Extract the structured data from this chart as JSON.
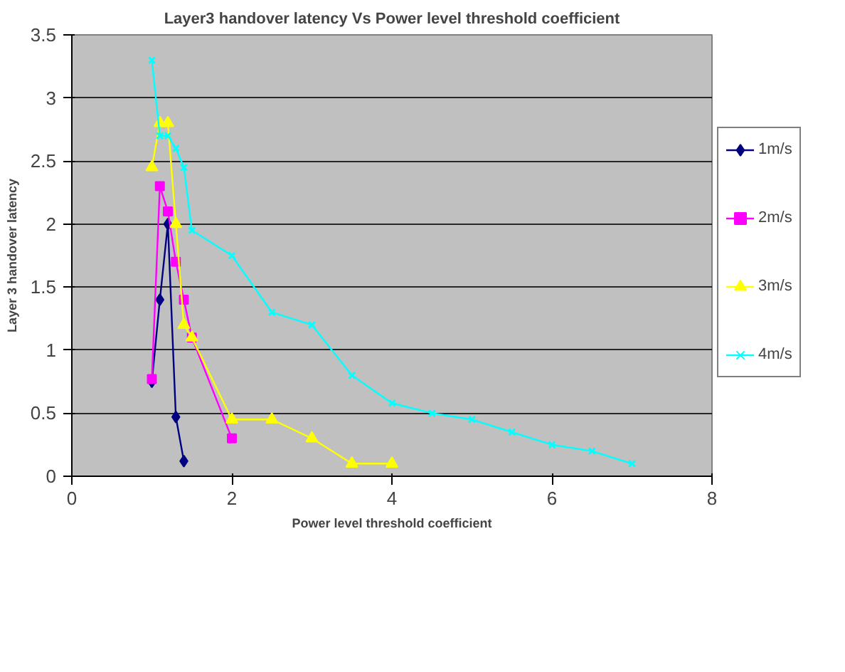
{
  "chart_data": {
    "type": "line",
    "title": "Layer3 handover latency Vs Power level threshold coefficient",
    "xlabel": "Power level threshold coefficient",
    "ylabel": "Layer 3 handover latency",
    "xlim": [
      0,
      8
    ],
    "xticks": [
      0,
      2,
      4,
      6,
      8
    ],
    "ylim": [
      0,
      3.5
    ],
    "yticks": [
      0,
      0.5,
      1,
      1.5,
      2,
      2.5,
      3,
      3.5
    ],
    "grid": "y",
    "legend": "right",
    "series": [
      {
        "name": "1m/s",
        "color": "#000080",
        "marker": "diamond",
        "x": [
          1,
          1.1,
          1.2,
          1.3,
          1.4
        ],
        "values": [
          0.75,
          1.4,
          2.0,
          0.47,
          0.12
        ]
      },
      {
        "name": "2m/s",
        "color": "#ff00ff",
        "marker": "square",
        "x": [
          1,
          1.1,
          1.2,
          1.3,
          1.4,
          1.5,
          2
        ],
        "values": [
          0.77,
          2.3,
          2.1,
          1.7,
          1.4,
          1.1,
          0.3
        ]
      },
      {
        "name": "3m/s",
        "color": "#ffff00",
        "marker": "triangle",
        "x": [
          1,
          1.1,
          1.2,
          1.3,
          1.4,
          1.5,
          2,
          2.5,
          3,
          3.5,
          4
        ],
        "values": [
          2.45,
          2.8,
          2.8,
          2.0,
          1.2,
          1.1,
          0.45,
          0.45,
          0.3,
          0.1,
          0.1
        ]
      },
      {
        "name": "4m/s",
        "color": "#00ffff",
        "marker": "cross",
        "x": [
          1,
          1.1,
          1.2,
          1.3,
          1.4,
          1.5,
          2,
          2.5,
          3,
          3.5,
          4,
          4.5,
          5,
          5.5,
          6,
          6.5,
          7
        ],
        "values": [
          3.3,
          2.7,
          2.7,
          2.6,
          2.45,
          1.95,
          1.75,
          1.3,
          1.2,
          0.8,
          0.58,
          0.5,
          0.45,
          0.35,
          0.25,
          0.2,
          0.1
        ]
      }
    ]
  }
}
